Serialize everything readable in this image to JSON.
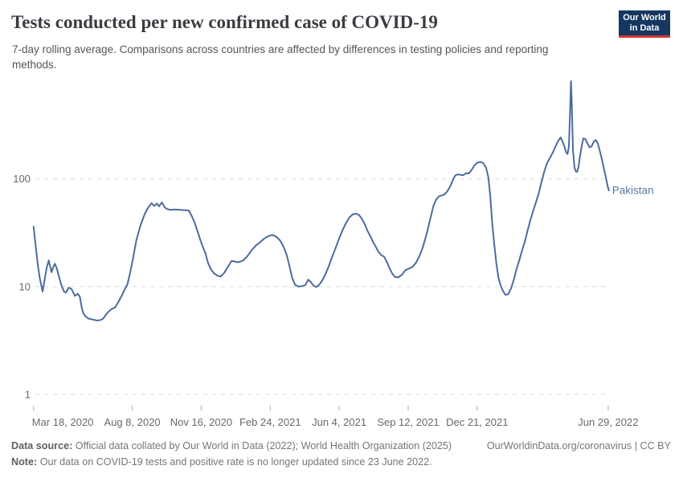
{
  "header": {
    "title": "Tests conducted per new confirmed case of COVID-19",
    "subtitle": "7-day rolling average. Comparisons across countries are affected by differences in testing policies and reporting methods.",
    "logo": {
      "line1": "Our World",
      "line2": "in Data"
    }
  },
  "colors": {
    "line": "#4d6b9e",
    "entity_label": "#5b7a9f",
    "logo_bg": "#153760",
    "logo_accent": "#cf3a34",
    "grid": "#d9d9d9",
    "axis_text": "#696969",
    "title_text": "#393c42"
  },
  "chart_data": {
    "type": "line",
    "title": "Tests conducted per new confirmed case of COVID-19",
    "subtitle": "7-day rolling average. Comparisons across countries are affected by differences in testing policies and reporting methods.",
    "grid": true,
    "legend": "inline-label-right-of-line",
    "x_axis": {
      "unit": "days since Mar 18, 2020",
      "range_days": [
        0,
        836
      ],
      "ticks": [
        {
          "label": "Mar 18, 2020",
          "day": 0
        },
        {
          "label": "Aug 8, 2020",
          "day": 143
        },
        {
          "label": "Nov 16, 2020",
          "day": 243
        },
        {
          "label": "Feb 24, 2021",
          "day": 343
        },
        {
          "label": "Jun 4, 2021",
          "day": 443
        },
        {
          "label": "Sep 12, 2021",
          "day": 543
        },
        {
          "label": "Dec 21, 2021",
          "day": 643
        },
        {
          "label": "Jun 29, 2022",
          "day": 833
        }
      ]
    },
    "y_axis": {
      "scale": "log",
      "ticks": [
        1,
        10,
        100
      ],
      "range": [
        1,
        870
      ]
    },
    "series": [
      {
        "name": "Pakistan",
        "color": "#4d6b9e",
        "label_color": "#5b7a9f",
        "points": [
          [
            0,
            36
          ],
          [
            3,
            24
          ],
          [
            6,
            16
          ],
          [
            9,
            12
          ],
          [
            13,
            9
          ],
          [
            16,
            11.5
          ],
          [
            19,
            15
          ],
          [
            22,
            17.5
          ],
          [
            26,
            13.6
          ],
          [
            29,
            15.5
          ],
          [
            31,
            16.3
          ],
          [
            34,
            14.5
          ],
          [
            37,
            12.2
          ],
          [
            40,
            10.5
          ],
          [
            44,
            9
          ],
          [
            47,
            8.8
          ],
          [
            51,
            9.8
          ],
          [
            55,
            9.5
          ],
          [
            58,
            8.7
          ],
          [
            60,
            8.2
          ],
          [
            64,
            8.6
          ],
          [
            67,
            8.1
          ],
          [
            70,
            6.3
          ],
          [
            72,
            5.7
          ],
          [
            75,
            5.3
          ],
          [
            80,
            5.05
          ],
          [
            86,
            4.95
          ],
          [
            92,
            4.85
          ],
          [
            97,
            4.9
          ],
          [
            101,
            5.05
          ],
          [
            105,
            5.5
          ],
          [
            109,
            5.9
          ],
          [
            113,
            6.2
          ],
          [
            118,
            6.4
          ],
          [
            123,
            7.2
          ],
          [
            128,
            8.3
          ],
          [
            132,
            9.4
          ],
          [
            136,
            10.5
          ],
          [
            140,
            13.5
          ],
          [
            144,
            18
          ],
          [
            149,
            27
          ],
          [
            155,
            37
          ],
          [
            161,
            47
          ],
          [
            166,
            54
          ],
          [
            171,
            59.5
          ],
          [
            175,
            56
          ],
          [
            179,
            59
          ],
          [
            182,
            55.5
          ],
          [
            186,
            60.5
          ],
          [
            190,
            54.5
          ],
          [
            194,
            52.3
          ],
          [
            199,
            51.5
          ],
          [
            205,
            52
          ],
          [
            212,
            51.5
          ],
          [
            219,
            51.2
          ],
          [
            225,
            50.8
          ],
          [
            229,
            45.5
          ],
          [
            233,
            40
          ],
          [
            237,
            33.5
          ],
          [
            241,
            28
          ],
          [
            245,
            23.7
          ],
          [
            249,
            20.5
          ],
          [
            253,
            16.5
          ],
          [
            257,
            14.5
          ],
          [
            262,
            13.2
          ],
          [
            267,
            12.6
          ],
          [
            271,
            12.4
          ],
          [
            276,
            13.3
          ],
          [
            281,
            15
          ],
          [
            287,
            17.3
          ],
          [
            292,
            17.1
          ],
          [
            296,
            16.8
          ],
          [
            300,
            17.1
          ],
          [
            304,
            17.5
          ],
          [
            310,
            19.2
          ],
          [
            316,
            21.7
          ],
          [
            322,
            24
          ],
          [
            328,
            25.7
          ],
          [
            334,
            27.8
          ],
          [
            340,
            29.3
          ],
          [
            346,
            30.2
          ],
          [
            352,
            29
          ],
          [
            358,
            26.5
          ],
          [
            363,
            23
          ],
          [
            367,
            19.5
          ],
          [
            371,
            15.5
          ],
          [
            375,
            12
          ],
          [
            379,
            10.4
          ],
          [
            384,
            10
          ],
          [
            389,
            10.1
          ],
          [
            394,
            10.3
          ],
          [
            398,
            11.6
          ],
          [
            402,
            11
          ],
          [
            406,
            10.2
          ],
          [
            410,
            9.9
          ],
          [
            414,
            10.4
          ],
          [
            418,
            11.3
          ],
          [
            423,
            13
          ],
          [
            428,
            15.5
          ],
          [
            433,
            19
          ],
          [
            438,
            23
          ],
          [
            443,
            28
          ],
          [
            448,
            33.5
          ],
          [
            453,
            39
          ],
          [
            458,
            44
          ],
          [
            463,
            47
          ],
          [
            468,
            47.5
          ],
          [
            472,
            46
          ],
          [
            476,
            42.5
          ],
          [
            480,
            38
          ],
          [
            484,
            33
          ],
          [
            488,
            29.5
          ],
          [
            492,
            26
          ],
          [
            496,
            23.5
          ],
          [
            500,
            21
          ],
          [
            504,
            19.6
          ],
          [
            508,
            19
          ],
          [
            512,
            17
          ],
          [
            516,
            14.8
          ],
          [
            520,
            13.2
          ],
          [
            524,
            12.3
          ],
          [
            529,
            12.2
          ],
          [
            534,
            12.9
          ],
          [
            539,
            14.2
          ],
          [
            544,
            14.7
          ],
          [
            549,
            15.2
          ],
          [
            554,
            16.5
          ],
          [
            559,
            19
          ],
          [
            564,
            23
          ],
          [
            568,
            28
          ],
          [
            571,
            33
          ],
          [
            574,
            40
          ],
          [
            577,
            48
          ],
          [
            580,
            57
          ],
          [
            584,
            65
          ],
          [
            588,
            69
          ],
          [
            592,
            70
          ],
          [
            596,
            72
          ],
          [
            600,
            77
          ],
          [
            604,
            85
          ],
          [
            608,
            98
          ],
          [
            611,
            107
          ],
          [
            615,
            110
          ],
          [
            619,
            109
          ],
          [
            623,
            108
          ],
          [
            627,
            113
          ],
          [
            631,
            112
          ],
          [
            635,
            121
          ],
          [
            639,
            133
          ],
          [
            643,
            141
          ],
          [
            648,
            143.5
          ],
          [
            652,
            140
          ],
          [
            656,
            126
          ],
          [
            659,
            105
          ],
          [
            662,
            70
          ],
          [
            665,
            38
          ],
          [
            668,
            24
          ],
          [
            671,
            16
          ],
          [
            674,
            12
          ],
          [
            677,
            10.3
          ],
          [
            680,
            9.2
          ],
          [
            684,
            8.4
          ],
          [
            688,
            8.5
          ],
          [
            692,
            9.6
          ],
          [
            696,
            11.5
          ],
          [
            700,
            14.5
          ],
          [
            704,
            17.5
          ],
          [
            708,
            21.5
          ],
          [
            712,
            26
          ],
          [
            716,
            33
          ],
          [
            720,
            41
          ],
          [
            724,
            50
          ],
          [
            728,
            60
          ],
          [
            732,
            72
          ],
          [
            736,
            92
          ],
          [
            740,
            115
          ],
          [
            744,
            138
          ],
          [
            748,
            155
          ],
          [
            752,
            172
          ],
          [
            756,
            195
          ],
          [
            760,
            222
          ],
          [
            764,
            242
          ],
          [
            767,
            220
          ],
          [
            770,
            195
          ],
          [
            772,
            176
          ],
          [
            774,
            170
          ],
          [
            776,
            200
          ],
          [
            778,
            480
          ],
          [
            779,
            805
          ],
          [
            780,
            560
          ],
          [
            781,
            300
          ],
          [
            782,
            185
          ],
          [
            784,
            128
          ],
          [
            786,
            117
          ],
          [
            788,
            116
          ],
          [
            790,
            130
          ],
          [
            792,
            160
          ],
          [
            795,
            208
          ],
          [
            797,
            237
          ],
          [
            800,
            234
          ],
          [
            803,
            212
          ],
          [
            806,
            196
          ],
          [
            809,
            200
          ],
          [
            812,
            221
          ],
          [
            815,
            229
          ],
          [
            818,
            212
          ],
          [
            821,
            180
          ],
          [
            824,
            150
          ],
          [
            827,
            122
          ],
          [
            830,
            100
          ],
          [
            832,
            86
          ],
          [
            834,
            78
          ]
        ]
      }
    ]
  },
  "footer": {
    "datasource_label": "Data source:",
    "datasource_text": "Official data collated by Our World in Data (2022); World Health Organization (2025)",
    "license": "OurWorldinData.org/coronavirus | CC BY",
    "note_label": "Note:",
    "note_text": "Our data on COVID-19 tests and positive rate is no longer updated since 23 June 2022."
  }
}
